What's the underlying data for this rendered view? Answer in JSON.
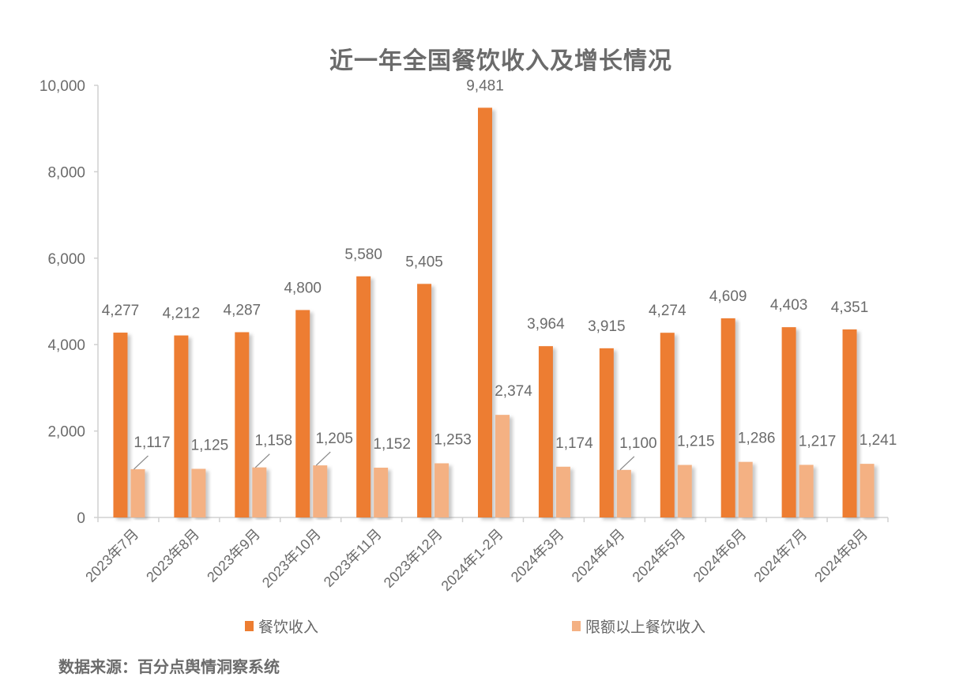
{
  "title": "近一年全国餐饮收入及增长情况",
  "source": "数据来源：百分点舆情洞察系统",
  "colors": {
    "series1": "#ED7D31",
    "series2": "#F4B183",
    "axis": "#d0d0d0",
    "label": "#666666"
  },
  "legend": [
    {
      "label": "餐饮收入",
      "color": "#ED7D31"
    },
    {
      "label": "限额以上餐饮收入",
      "color": "#F4B183"
    }
  ],
  "chart_data": {
    "type": "bar",
    "title": "近一年全国餐饮收入及增长情况",
    "xlabel": "",
    "ylabel": "",
    "ylim": [
      0,
      10000
    ],
    "yticks": [
      0,
      2000,
      4000,
      6000,
      8000,
      10000
    ],
    "ytick_labels": [
      "0",
      "2,000",
      "4,000",
      "6,000",
      "8,000",
      "10,000"
    ],
    "grid": false,
    "legend_position": "bottom",
    "categories": [
      "2023年7月",
      "2023年8月",
      "2023年9月",
      "2023年10月",
      "2023年11月",
      "2023年12月",
      "2024年1-2月",
      "2024年3月",
      "2024年4月",
      "2024年5月",
      "2024年6月",
      "2024年7月",
      "2024年8月"
    ],
    "series": [
      {
        "name": "餐饮收入",
        "values": [
          4277,
          4212,
          4287,
          4800,
          5580,
          5405,
          9481,
          3964,
          3915,
          4274,
          4609,
          4403,
          4351
        ]
      },
      {
        "name": "限额以上餐饮收入",
        "values": [
          1117,
          1125,
          1158,
          1205,
          1152,
          1253,
          2374,
          1174,
          1100,
          1215,
          1286,
          1217,
          1241
        ]
      }
    ]
  }
}
